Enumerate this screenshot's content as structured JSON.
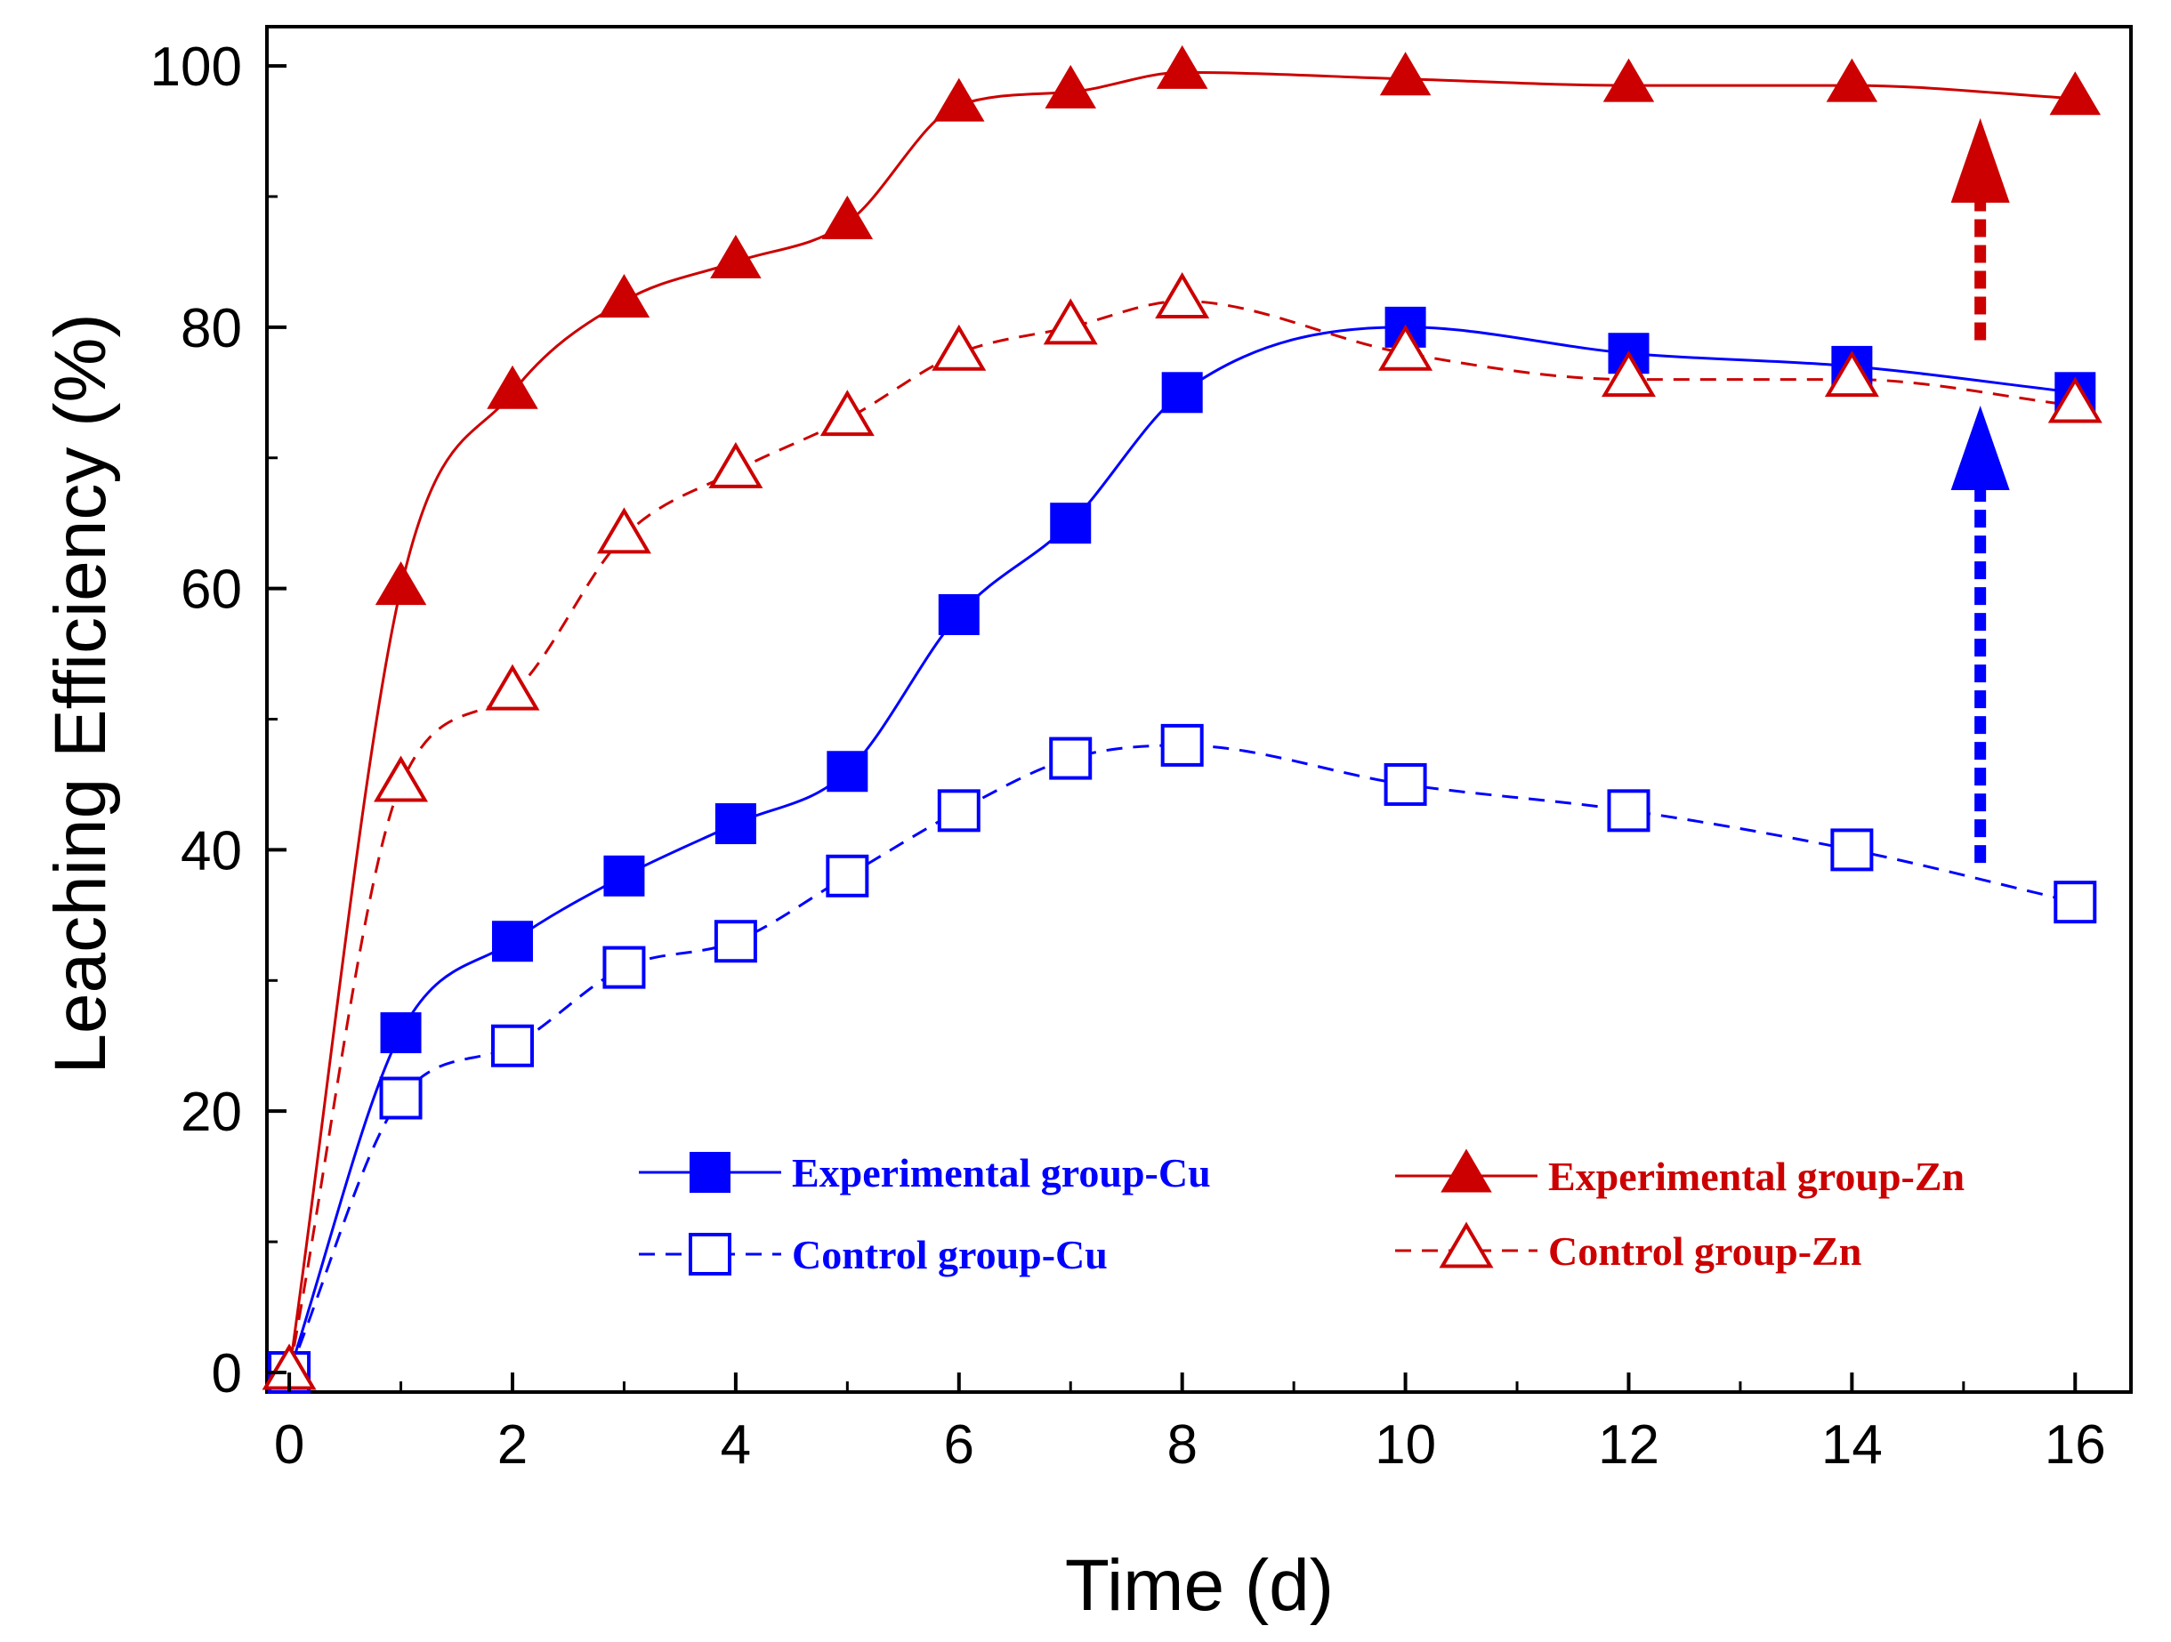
{
  "chart_data": {
    "type": "line",
    "xlabel": "Time (d)",
    "ylabel": "Leaching Efficiency (%)",
    "xlim": [
      -0.2,
      16.5
    ],
    "ylim": [
      -1.5,
      103
    ],
    "xticks": [
      0,
      2,
      4,
      6,
      8,
      10,
      12,
      14,
      16
    ],
    "yticks": [
      0,
      20,
      40,
      60,
      80,
      100
    ],
    "grid": false,
    "legend_position": "bottom-center",
    "series": [
      {
        "name": "Experimental group-Cu",
        "color": "#0000ff",
        "marker": "square-filled",
        "line": "solid",
        "x": [
          0,
          1,
          2,
          3,
          4,
          5,
          6,
          7,
          8,
          10,
          12,
          14,
          16
        ],
        "y": [
          0,
          26,
          33,
          38,
          42,
          46,
          58,
          65,
          75,
          80,
          78,
          77,
          75
        ]
      },
      {
        "name": "Control group-Cu",
        "color": "#0000ff",
        "marker": "square-open",
        "line": "dashed",
        "x": [
          0,
          1,
          2,
          3,
          4,
          5,
          6,
          7,
          8,
          10,
          12,
          14,
          16
        ],
        "y": [
          0,
          21,
          25,
          31,
          33,
          38,
          43,
          47,
          48,
          45,
          43,
          40,
          36
        ]
      },
      {
        "name": "Experimental group-Zn",
        "color": "#cc0000",
        "marker": "triangle-filled",
        "line": "solid",
        "x": [
          0,
          1,
          2,
          3,
          4,
          5,
          6,
          7,
          8,
          10,
          12,
          14,
          16
        ],
        "y": [
          0,
          60,
          75,
          82,
          85,
          88,
          97,
          98,
          99.5,
          99,
          98.5,
          98.5,
          97.5
        ]
      },
      {
        "name": "Control group-Zn",
        "color": "#cc0000",
        "marker": "triangle-open",
        "line": "dashed",
        "x": [
          0,
          1,
          2,
          3,
          4,
          5,
          6,
          7,
          8,
          10,
          12,
          14,
          16
        ],
        "y": [
          0,
          45,
          52,
          64,
          69,
          73,
          78,
          80,
          82,
          78,
          76,
          76,
          74
        ]
      }
    ],
    "annotations": [
      {
        "type": "arrow",
        "color": "#cc0000",
        "x": 15.15,
        "y_from": 79,
        "y_to": 96
      },
      {
        "type": "arrow",
        "color": "#0000ff",
        "x": 15.15,
        "y_from": 39,
        "y_to": 74
      }
    ]
  }
}
